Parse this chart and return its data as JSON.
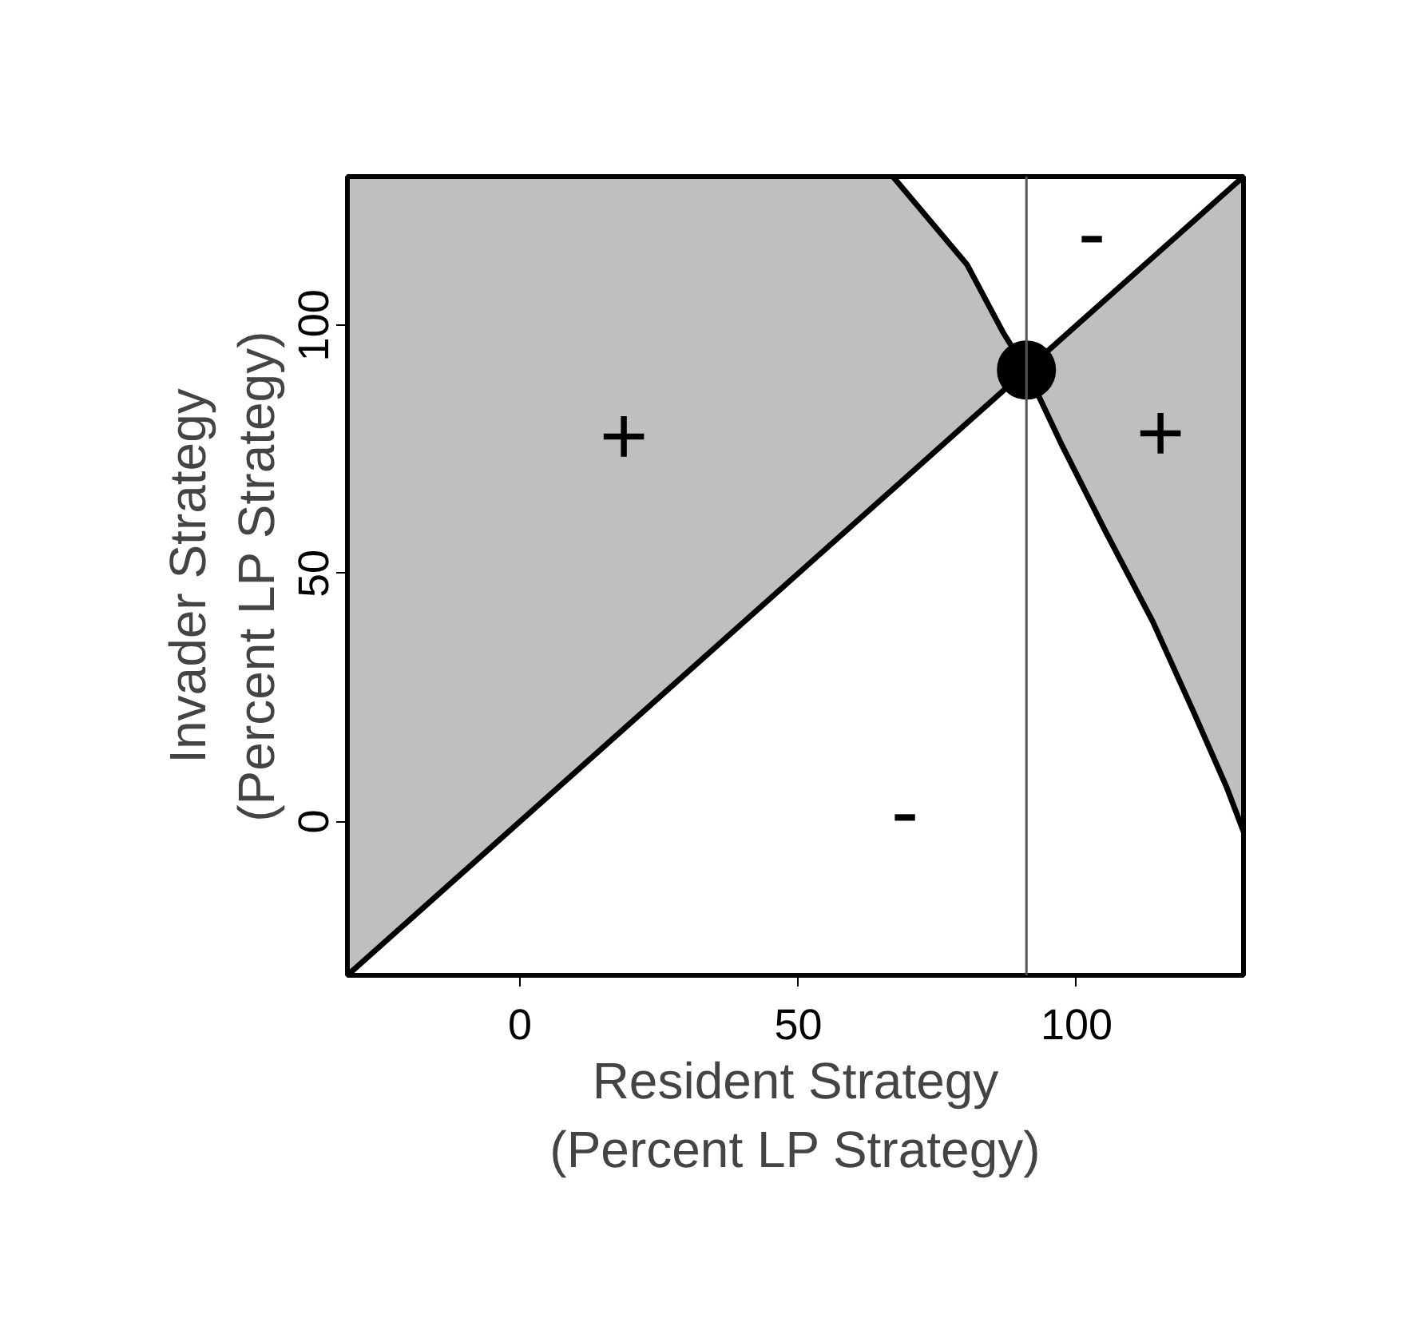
{
  "chart_data": {
    "type": "line",
    "xlabel": "Resident Strategy\n(Percent LP Strategy)",
    "ylabel": "Invader Strategy\n(Percent LP Strategy)",
    "xlim": [
      -31,
      130
    ],
    "ylim": [
      -31,
      130
    ],
    "xticks": [
      0,
      50,
      100
    ],
    "yticks": [
      0,
      50,
      100
    ],
    "grid": false,
    "series": [
      {
        "color": "#000000",
        "x": [
          -31,
          67,
          80.3,
          86.9,
          91,
          97.4,
          105.1,
          113.7,
          121.1,
          126.9,
          130
        ],
        "values": [
          -31,
          67,
          80.3,
          86.9,
          91,
          97.4,
          105.1,
          113.7,
          121.1,
          126.9,
          130
        ],
        "lower": [
          -31,
          67,
          80.3,
          86.9,
          91,
          75.8,
          58.7,
          40.3,
          21.9,
          7.1,
          -2
        ],
        "upper": [
          130,
          130,
          112.3,
          98.4,
          91,
          97.4,
          105.1,
          113.7,
          121.1,
          126.9,
          130
        ]
      },
      {
        "color": "#000000",
        "x": [
          67,
          80.3,
          86.9,
          91,
          97.4,
          105.1,
          113.7,
          121.1,
          126.9,
          130
        ],
        "values": [
          130,
          112.3,
          98.4,
          91,
          75.8,
          58.7,
          40.3,
          21.9,
          7.1,
          -2
        ]
      },
      {
        "type": "scatter",
        "color": "#000000",
        "x": [
          91
        ],
        "values": [
          91
        ]
      }
    ],
    "ref_lines": [
      {
        "axis": "x",
        "value": 91,
        "color": "#555555"
      }
    ],
    "annotations": [
      "+",
      "+",
      "-",
      "-"
    ]
  }
}
